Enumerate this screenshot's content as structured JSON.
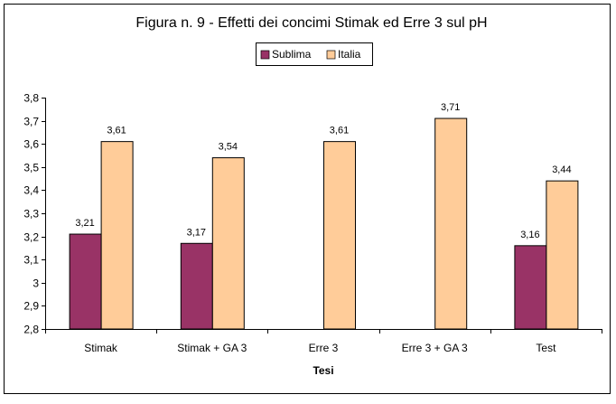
{
  "chart_data": {
    "type": "bar",
    "title": "Figura n. 9 - Effetti dei concimi Stimak ed Erre 3 sul pH",
    "xlabel": "Tesi",
    "ylabel": "",
    "categories": [
      "Stimak",
      "Stimak + GA 3",
      "Erre 3",
      "Erre 3 + GA 3",
      "Test"
    ],
    "series": [
      {
        "name": "Sublima",
        "color": "#993366",
        "values": [
          3.21,
          3.17,
          null,
          null,
          3.16
        ],
        "labels": [
          "3,21",
          "3,17",
          null,
          null,
          "3,16"
        ]
      },
      {
        "name": "Italia",
        "color": "#FFCC99",
        "values": [
          3.61,
          3.54,
          3.61,
          3.71,
          3.44
        ],
        "labels": [
          "3,61",
          "3,54",
          "3,61",
          "3,71",
          "3,44"
        ]
      }
    ],
    "ylim": [
      2.8,
      3.8
    ],
    "yticks": [
      "2,8",
      "2,9",
      "3",
      "3,1",
      "3,2",
      "3,3",
      "3,4",
      "3,5",
      "3,6",
      "3,7",
      "3,8"
    ],
    "grid": false,
    "legend_position": "top-center"
  }
}
